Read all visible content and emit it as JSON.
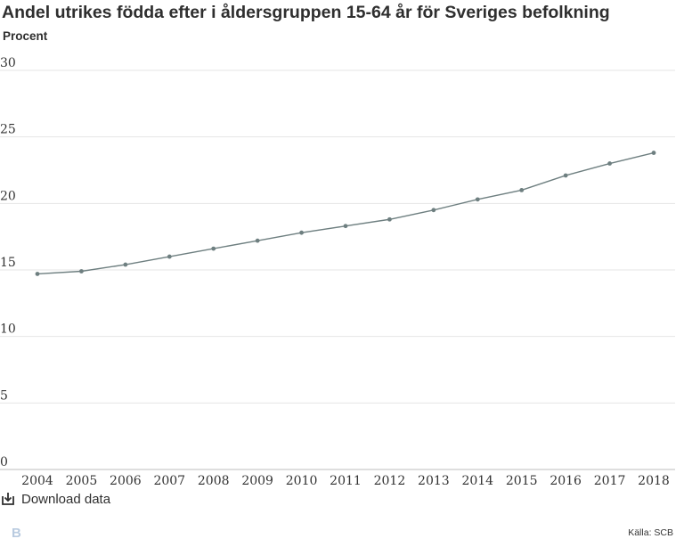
{
  "chart_data": {
    "type": "line",
    "title": "Andel utrikes födda efter i åldersgruppen 15-64 år för Sveriges befolkning",
    "subtitle": "Procent",
    "categories": [
      "2004",
      "2005",
      "2006",
      "2007",
      "2008",
      "2009",
      "2010",
      "2011",
      "2012",
      "2013",
      "2014",
      "2015",
      "2016",
      "2017",
      "2018"
    ],
    "values": [
      14.7,
      14.9,
      15.4,
      16.0,
      16.6,
      17.2,
      17.8,
      18.3,
      18.8,
      19.5,
      20.3,
      21.0,
      22.1,
      23.0,
      23.8
    ],
    "yticks": [
      "0",
      "5",
      "10",
      "15",
      "20",
      "25",
      "30"
    ],
    "ylim": [
      0,
      30
    ],
    "grid": true,
    "line_color": "#6e7f80"
  },
  "footer": {
    "download_label": "Download data",
    "source": "Källa: SCB",
    "logo": "B"
  }
}
